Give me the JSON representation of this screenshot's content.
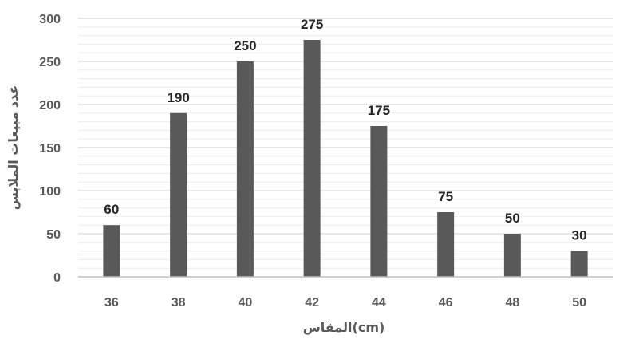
{
  "chart_data": {
    "type": "bar",
    "categories": [
      "36",
      "38",
      "40",
      "42",
      "44",
      "46",
      "48",
      "50"
    ],
    "values": [
      60,
      190,
      250,
      275,
      175,
      75,
      50,
      30
    ],
    "data_labels": [
      "60",
      "190",
      "250",
      "275",
      "175",
      "75",
      "50",
      "30"
    ],
    "xlabel": "المقاس(cm)",
    "ylabel": "عدد مبيعات الملابس",
    "ylim": [
      0,
      300
    ],
    "yticks": [
      "0",
      "50",
      "100",
      "150",
      "200",
      "250",
      "300"
    ],
    "grid": true,
    "bar_color": "#595959",
    "grid_color": "#d9d9d9"
  }
}
